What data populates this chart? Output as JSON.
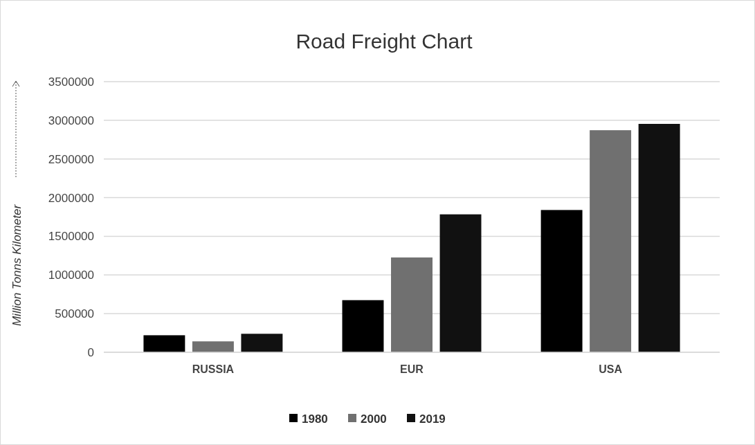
{
  "chart_data": {
    "type": "bar",
    "title": "Road Freight Chart",
    "ylabel": "Million Tonns Kilometer",
    "categories": [
      "RUSSIA",
      "EUR",
      "USA"
    ],
    "series": [
      {
        "name": "1980",
        "color": "#000000",
        "values": [
          220000,
          674000,
          1840000
        ]
      },
      {
        "name": "2000",
        "color": "#707070",
        "values": [
          141000,
          1226000,
          2872000
        ]
      },
      {
        "name": "2019",
        "color": "#111111",
        "values": [
          239000,
          1784000,
          2954000
        ]
      }
    ],
    "ylim": [
      0,
      3500000
    ],
    "yticks": [
      0,
      500000,
      1000000,
      1500000,
      2000000,
      2500000,
      3000000,
      3500000
    ],
    "grid": "y",
    "legend": "bottom"
  }
}
